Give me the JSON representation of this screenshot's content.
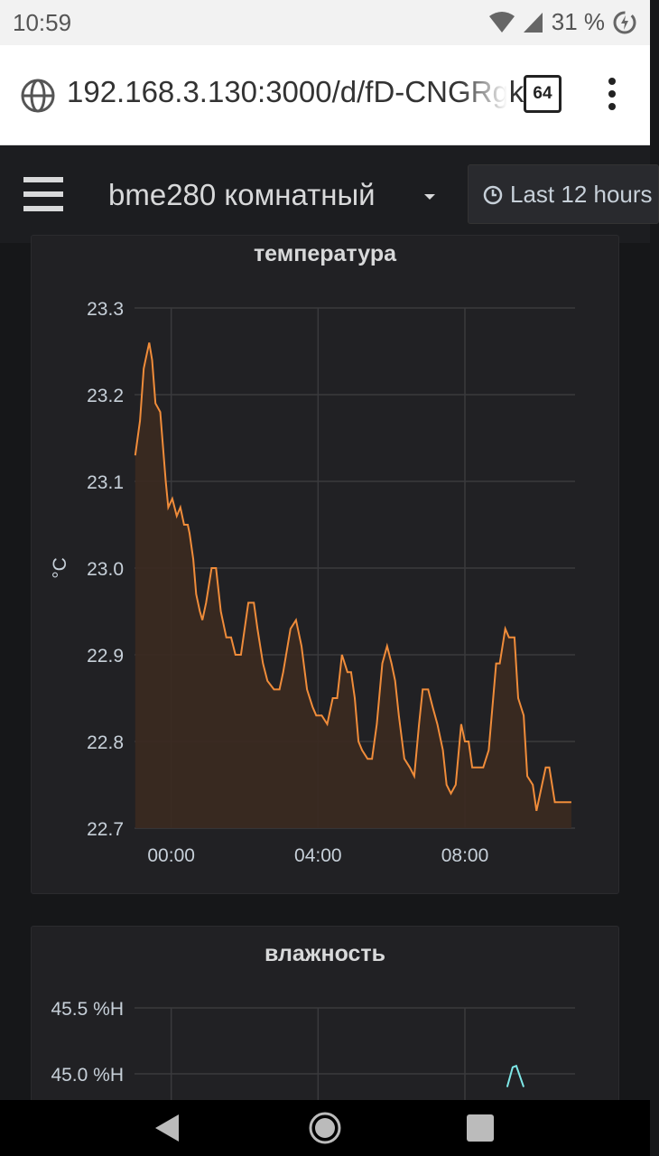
{
  "status_bar": {
    "time": "10:59",
    "battery": "31 %"
  },
  "browser": {
    "url": "192.168.3.130:3000/d/fD-CNGRgk",
    "tab_count": "64"
  },
  "header": {
    "dashboard_title": "bme280 комнатный",
    "time_range": "Last 12 hours"
  },
  "panels": {
    "temperature": {
      "title": "температура"
    },
    "humidity": {
      "title": "влажность"
    }
  },
  "chart_data": [
    {
      "type": "area",
      "title": "температура",
      "ylabel": "°C",
      "xlabel": "",
      "ylim": [
        22.7,
        23.3
      ],
      "y_ticks": [
        "23.3",
        "23.2",
        "23.1",
        "23.0",
        "22.9",
        "22.8",
        "22.7"
      ],
      "x_ticks": [
        {
          "label": "00:00",
          "hour": 0
        },
        {
          "label": "04:00",
          "hour": 4
        },
        {
          "label": "08:00",
          "hour": 8
        }
      ],
      "x_range_hours": [
        -1.0,
        11.0
      ],
      "grid": true,
      "colors": {
        "line": "#f08c3a",
        "fill": "#3b2a20"
      },
      "series": [
        {
          "x": [
            -0.98,
            -0.85,
            -0.75,
            -0.7,
            -0.6,
            -0.52,
            -0.43,
            -0.3,
            -0.15,
            -0.08,
            0.03,
            0.15,
            0.25,
            0.35,
            0.45,
            0.5,
            0.6,
            0.68,
            0.78,
            0.85,
            0.95,
            1.1,
            1.22,
            1.35,
            1.5,
            1.63,
            1.75,
            1.9,
            2.1,
            2.25,
            2.35,
            2.5,
            2.62,
            2.8,
            2.95,
            3.05,
            3.25,
            3.4,
            3.55,
            3.7,
            3.85,
            3.95,
            4.1,
            4.25,
            4.4,
            4.52,
            4.65,
            4.8,
            4.9,
            5.0,
            5.1,
            5.2,
            5.35,
            5.47,
            5.6,
            5.75,
            5.88,
            6.0,
            6.1,
            6.2,
            6.35,
            6.5,
            6.62,
            6.75,
            6.85,
            7.0,
            7.12,
            7.25,
            7.4,
            7.5,
            7.62,
            7.75,
            7.9,
            8.0,
            8.1,
            8.2,
            8.35,
            8.5,
            8.65,
            8.85,
            8.95,
            9.1,
            9.2,
            9.35,
            9.45,
            9.6,
            9.7,
            9.85,
            9.95,
            10.1,
            10.2,
            10.3,
            10.45,
            10.6,
            10.75,
            10.9
          ],
          "y": [
            23.13,
            23.17,
            23.23,
            23.24,
            23.26,
            23.24,
            23.19,
            23.18,
            23.1,
            23.07,
            23.08,
            23.06,
            23.07,
            23.05,
            23.05,
            23.04,
            23.01,
            22.97,
            22.95,
            22.94,
            22.96,
            23.0,
            23.0,
            22.95,
            22.92,
            22.92,
            22.9,
            22.9,
            22.96,
            22.96,
            22.93,
            22.89,
            22.87,
            22.86,
            22.86,
            22.88,
            22.93,
            22.94,
            22.91,
            22.86,
            22.84,
            22.83,
            22.83,
            22.82,
            22.85,
            22.85,
            22.9,
            22.88,
            22.88,
            22.85,
            22.8,
            22.79,
            22.78,
            22.78,
            22.82,
            22.89,
            22.91,
            22.89,
            22.87,
            22.83,
            22.78,
            22.77,
            22.76,
            22.82,
            22.86,
            22.86,
            22.84,
            22.82,
            22.79,
            22.75,
            22.74,
            22.75,
            22.82,
            22.8,
            22.8,
            22.77,
            22.77,
            22.77,
            22.79,
            22.89,
            22.89,
            22.93,
            22.92,
            22.92,
            22.85,
            22.83,
            22.76,
            22.75,
            22.72,
            22.75,
            22.77,
            22.77,
            22.73,
            22.73,
            22.73,
            22.73
          ]
        }
      ]
    },
    {
      "type": "area",
      "title": "влажность",
      "y_ticks": [
        "45.5 %H",
        "45.0 %H"
      ],
      "x_ticks_hours": [
        0,
        4,
        8
      ],
      "grid": true,
      "colors": {
        "line": "#7ee8e8"
      },
      "series": [
        {
          "x": [
            9.15,
            9.3,
            9.4,
            9.6
          ],
          "y": [
            44.9,
            45.05,
            45.06,
            44.9
          ]
        }
      ]
    }
  ],
  "colors": {
    "accent": "#f08c3a",
    "humidity_line": "#7ee8e8",
    "background": "#161719",
    "panel": "#212124"
  }
}
